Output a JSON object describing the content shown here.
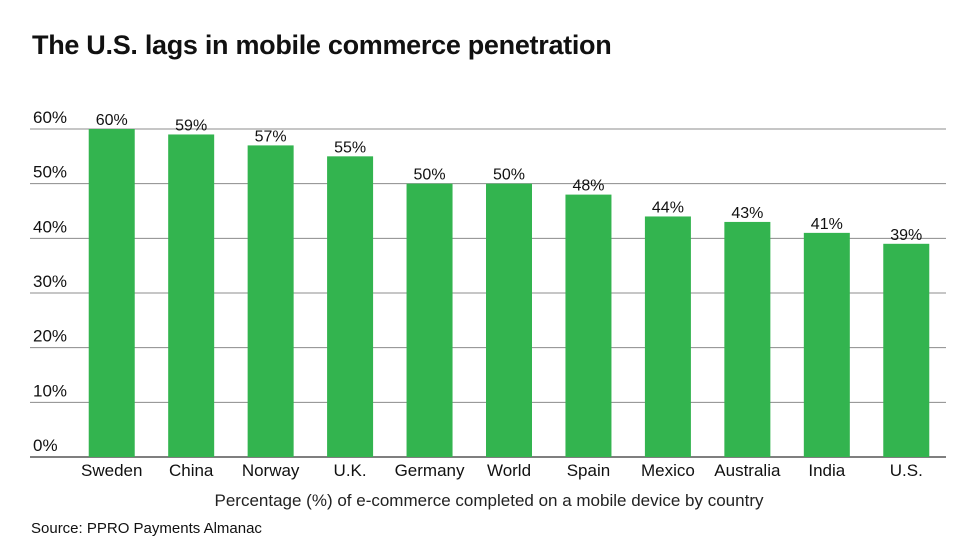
{
  "chart_data": {
    "type": "bar",
    "title": "The U.S. lags in mobile commerce penetration",
    "xlabel": "Percentage (%) of e-commerce completed on a mobile device by country",
    "ylabel": "",
    "source": "Source: PPRO Payments Almanac",
    "categories": [
      "Sweden",
      "China",
      "Norway",
      "U.K.",
      "Germany",
      "World",
      "Spain",
      "Mexico",
      "Australia",
      "India",
      "U.S."
    ],
    "values": [
      60,
      59,
      57,
      55,
      50,
      50,
      48,
      44,
      43,
      41,
      39
    ],
    "value_labels": [
      "60%",
      "59%",
      "57%",
      "55%",
      "50%",
      "50%",
      "48%",
      "44%",
      "43%",
      "41%",
      "39%"
    ],
    "ylim": [
      0,
      60
    ],
    "yticks": [
      0,
      10,
      20,
      30,
      40,
      50,
      60
    ],
    "ytick_labels": [
      "0%",
      "10%",
      "20%",
      "30%",
      "40%",
      "50%",
      "60%"
    ],
    "grid": true,
    "colors": {
      "bar": "#33b44f",
      "grid": "#8c8c8c",
      "text": "#111111"
    }
  }
}
